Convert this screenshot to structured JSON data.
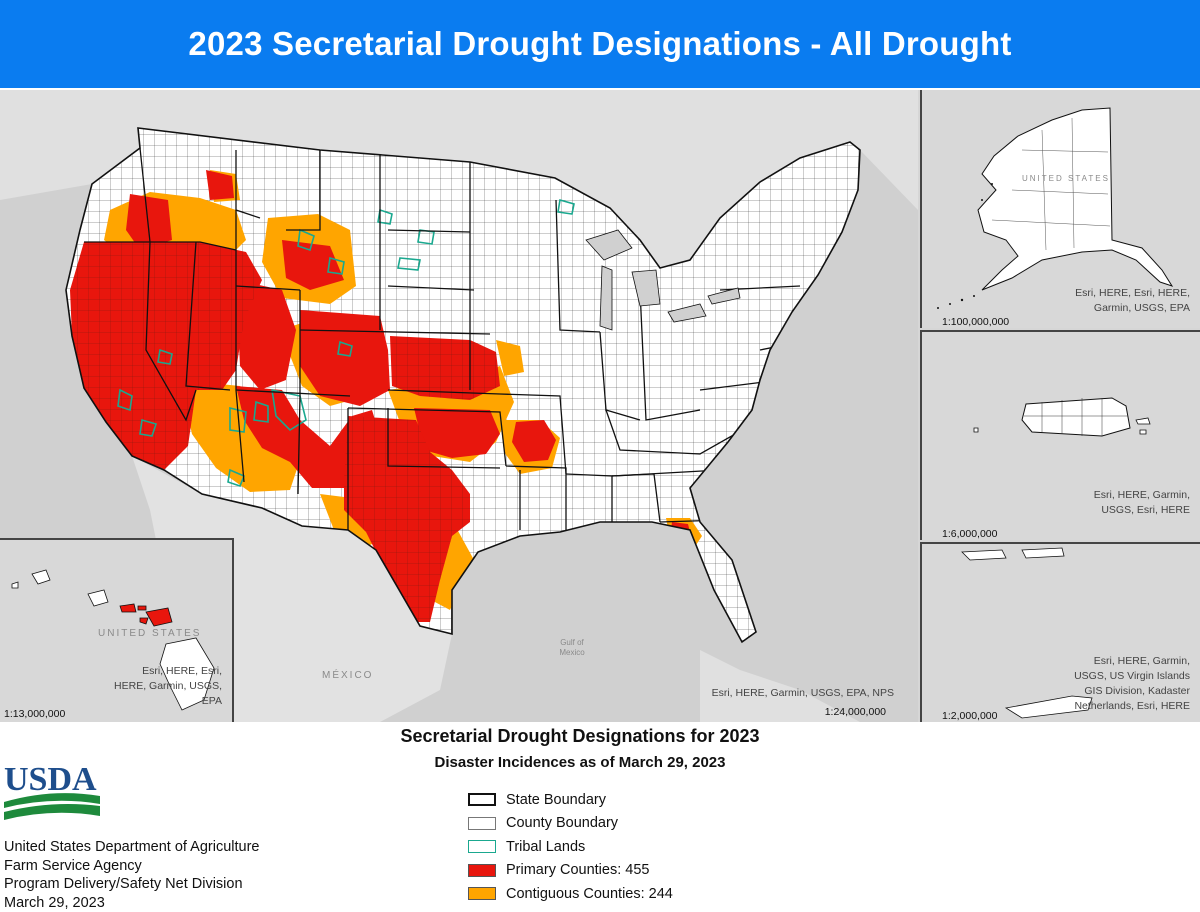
{
  "header": {
    "title": "2023 Secretarial Drought Designations - All Drought"
  },
  "map": {
    "main": {
      "scale": "1:24,000,000",
      "credit": "Esri, HERE, Garmin, USGS, EPA, NPS",
      "labels": {
        "country": "MÉXICO",
        "gulf_line1": "Gulf of",
        "gulf_line2": "Mexico"
      }
    },
    "alaska": {
      "scale": "1:100,000,000",
      "credit_line1": "Esri, HERE, Esri, HERE,",
      "credit_line2": "Garmin, USGS, EPA",
      "label": "UNITED STATES"
    },
    "puerto_rico": {
      "scale": "1:6,000,000",
      "credit_line1": "Esri, HERE, Garmin,",
      "credit_line2": "USGS, Esri, HERE"
    },
    "virgin_islands": {
      "scale": "1:2,000,000",
      "credit_line1": "Esri, HERE, Garmin,",
      "credit_line2": "USGS, US Virgin Islands",
      "credit_line3": "GIS Division, Kadaster",
      "credit_line4": "Netherlands, Esri, HERE"
    },
    "hawaii": {
      "scale": "1:13,000,000",
      "label": "UNITED STATES",
      "credit_line1": "Esri, HERE, Esri,",
      "credit_line2": "HERE, Garmin, USGS,",
      "credit_line3": "EPA"
    }
  },
  "legend": {
    "title": "Secretarial Drought Designations for 2023",
    "subtitle": "Disaster Incidences as of March 29, 2023",
    "items": [
      {
        "label": "State Boundary",
        "style": "state"
      },
      {
        "label": "County Boundary",
        "style": "county"
      },
      {
        "label": "Tribal Lands",
        "style": "tribal"
      },
      {
        "label": "Primary Counties: 455",
        "style": "primary"
      },
      {
        "label": "Contiguous Counties: 244",
        "style": "contiguous"
      }
    ]
  },
  "colors": {
    "primary": "#e8160d",
    "contiguous": "#ffa500",
    "tribal": "#1aa88f",
    "land": "#ffffff",
    "header_bg": "#0a7cf0"
  },
  "agency": {
    "logo_text": "USDA",
    "line1": "United States Department of Agriculture",
    "line2": "Farm Service Agency",
    "line3": "Program Delivery/Safety Net Division",
    "line4": "March 29, 2023"
  }
}
